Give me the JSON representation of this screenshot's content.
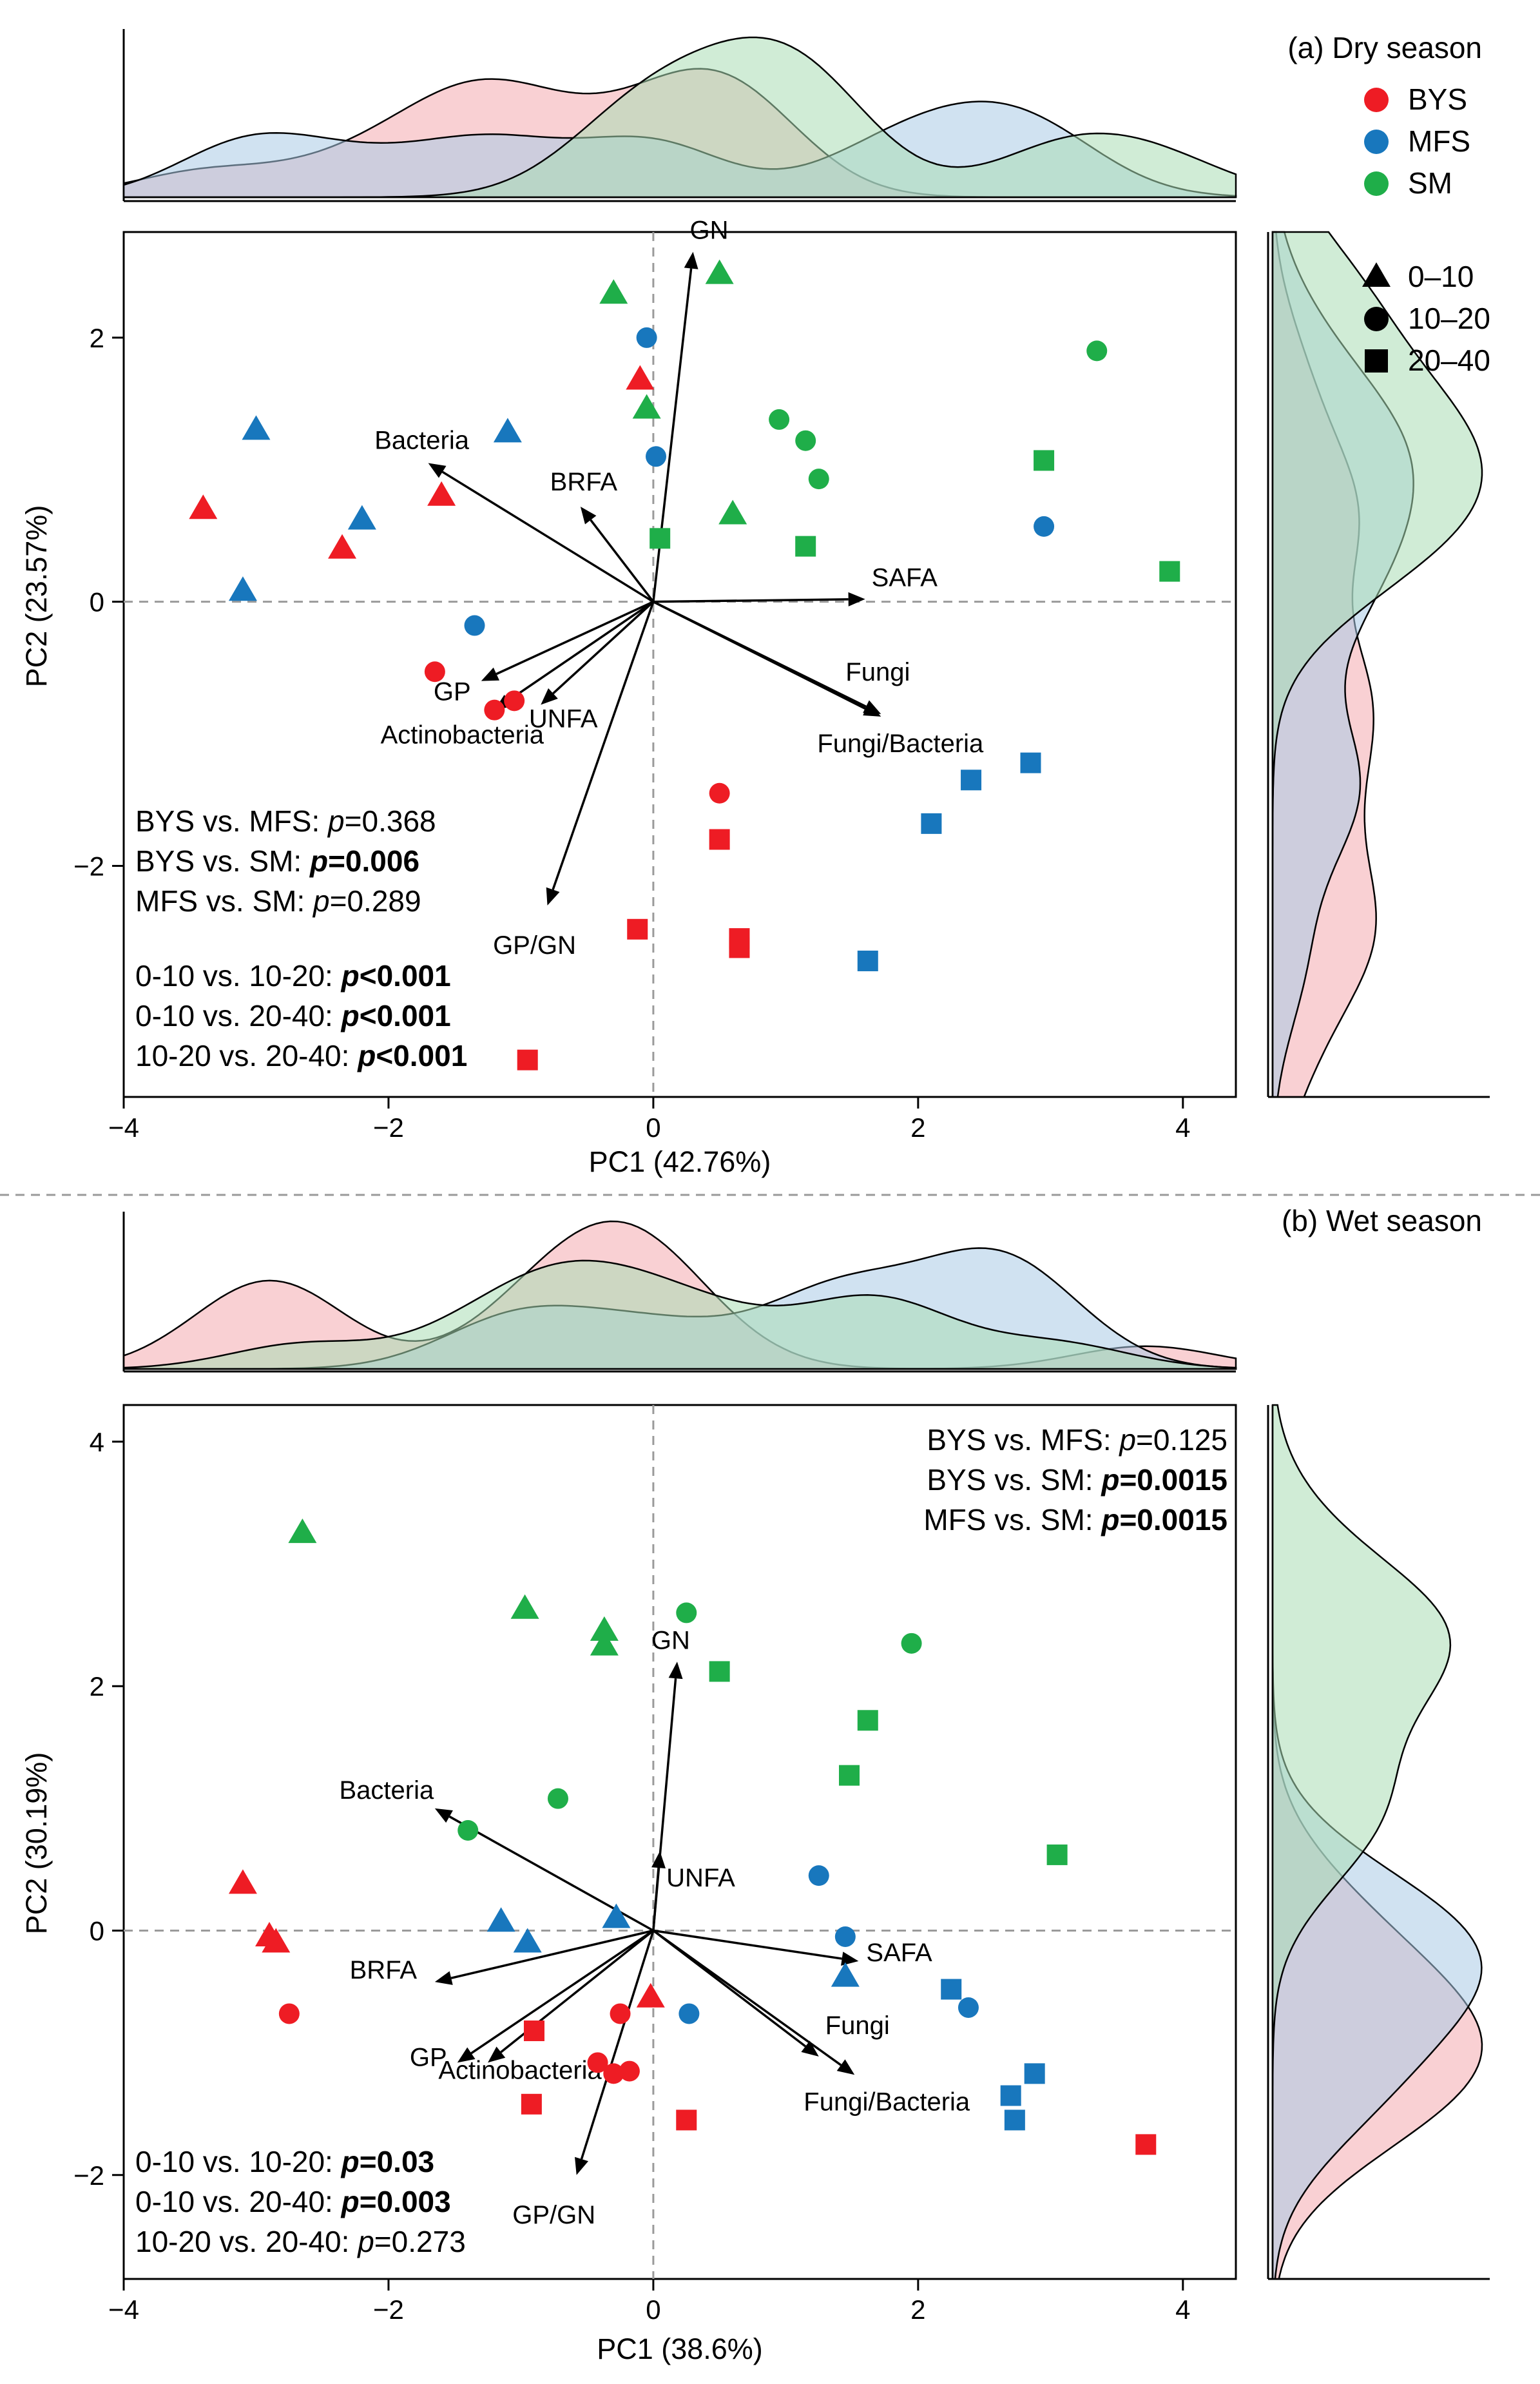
{
  "figure": {
    "legend": {
      "groups": [
        {
          "name": "BYS",
          "color": "#ee1c24"
        },
        {
          "name": "MFS",
          "color": "#1877bd"
        },
        {
          "name": "SM",
          "color": "#1fae49"
        }
      ],
      "depths": [
        {
          "name": "0–10",
          "shape": "triangle"
        },
        {
          "name": "10–20",
          "shape": "circle"
        },
        {
          "name": "20–40",
          "shape": "square"
        }
      ]
    },
    "colors": {
      "BYS": "#ee1c24",
      "MFS": "#1877bd",
      "SM": "#1fae49",
      "BYS_fill": "#f4a9ae",
      "MFS_fill": "#a9cbe6",
      "SM_fill": "#a9dcb4",
      "axis": "#000000",
      "zero_line": "#9a9a9a",
      "divider": "#9a9a9a"
    }
  },
  "chart_data": [
    {
      "id": "a",
      "type": "scatter",
      "title": "(a) Dry season",
      "xlabel": "PC1 (42.76%)",
      "ylabel": "PC2 (23.57%)",
      "xlim": [
        -4.0,
        4.4
      ],
      "ylim": [
        -3.75,
        2.8
      ],
      "xticks": [
        -4,
        -2,
        0,
        2,
        4
      ],
      "yticks": [
        -2,
        0,
        2
      ],
      "xtick_labels": [
        "−4",
        "−2",
        "0",
        "2",
        "4"
      ],
      "ytick_labels": [
        "−2",
        "0",
        "2"
      ],
      "points": [
        {
          "g": "BYS",
          "d": "0-10",
          "x": -3.4,
          "y": 0.7
        },
        {
          "g": "BYS",
          "d": "0-10",
          "x": -2.35,
          "y": 0.4
        },
        {
          "g": "BYS",
          "d": "0-10",
          "x": -1.6,
          "y": 0.8
        },
        {
          "g": "BYS",
          "d": "0-10",
          "x": -0.1,
          "y": 1.68
        },
        {
          "g": "BYS",
          "d": "10-20",
          "x": -1.65,
          "y": -0.53
        },
        {
          "g": "BYS",
          "d": "10-20",
          "x": -1.2,
          "y": -0.82
        },
        {
          "g": "BYS",
          "d": "10-20",
          "x": -1.05,
          "y": -0.75
        },
        {
          "g": "BYS",
          "d": "10-20",
          "x": 0.5,
          "y": -1.45
        },
        {
          "g": "BYS",
          "d": "20-40",
          "x": 0.5,
          "y": -1.8
        },
        {
          "g": "BYS",
          "d": "20-40",
          "x": -0.12,
          "y": -2.48
        },
        {
          "g": "BYS",
          "d": "20-40",
          "x": 0.65,
          "y": -2.55
        },
        {
          "g": "BYS",
          "d": "20-40",
          "x": 0.65,
          "y": -2.62
        },
        {
          "g": "BYS",
          "d": "20-40",
          "x": -0.95,
          "y": -3.47
        },
        {
          "g": "MFS",
          "d": "0-10",
          "x": -3.0,
          "y": 1.3
        },
        {
          "g": "MFS",
          "d": "0-10",
          "x": -2.2,
          "y": 0.62
        },
        {
          "g": "MFS",
          "d": "0-10",
          "x": -3.1,
          "y": 0.08
        },
        {
          "g": "MFS",
          "d": "0-10",
          "x": -1.1,
          "y": 1.28
        },
        {
          "g": "MFS",
          "d": "10-20",
          "x": -0.05,
          "y": 2.0
        },
        {
          "g": "MFS",
          "d": "10-20",
          "x": 0.02,
          "y": 1.1
        },
        {
          "g": "MFS",
          "d": "10-20",
          "x": -1.35,
          "y": -0.18
        },
        {
          "g": "MFS",
          "d": "10-20",
          "x": 2.95,
          "y": 0.57
        },
        {
          "g": "MFS",
          "d": "20-40",
          "x": 2.85,
          "y": -1.22
        },
        {
          "g": "MFS",
          "d": "20-40",
          "x": 2.4,
          "y": -1.35
        },
        {
          "g": "MFS",
          "d": "20-40",
          "x": 2.1,
          "y": -1.68
        },
        {
          "g": "MFS",
          "d": "20-40",
          "x": 1.62,
          "y": -2.72
        },
        {
          "g": "SM",
          "d": "0-10",
          "x": -0.3,
          "y": 2.33
        },
        {
          "g": "SM",
          "d": "0-10",
          "x": 0.5,
          "y": 2.48
        },
        {
          "g": "SM",
          "d": "0-10",
          "x": -0.05,
          "y": 1.46
        },
        {
          "g": "SM",
          "d": "0-10",
          "x": 0.6,
          "y": 0.66
        },
        {
          "g": "SM",
          "d": "10-20",
          "x": 0.95,
          "y": 1.38
        },
        {
          "g": "SM",
          "d": "10-20",
          "x": 1.15,
          "y": 1.22
        },
        {
          "g": "SM",
          "d": "10-20",
          "x": 1.25,
          "y": 0.93
        },
        {
          "g": "SM",
          "d": "10-20",
          "x": 3.35,
          "y": 1.9
        },
        {
          "g": "SM",
          "d": "20-40",
          "x": 0.05,
          "y": 0.48
        },
        {
          "g": "SM",
          "d": "20-40",
          "x": 1.15,
          "y": 0.42
        },
        {
          "g": "SM",
          "d": "20-40",
          "x": 2.95,
          "y": 1.07
        },
        {
          "g": "SM",
          "d": "20-40",
          "x": 3.9,
          "y": 0.23
        }
      ],
      "vectors": [
        {
          "label": "GN",
          "x": 0.3,
          "y": 2.65
        },
        {
          "label": "Bacteria",
          "x": -1.7,
          "y": 1.05
        },
        {
          "label": "BRFA",
          "x": -0.55,
          "y": 0.72
        },
        {
          "label": "SAFA",
          "x": 1.6,
          "y": 0.02
        },
        {
          "label": "Fungi",
          "x": 1.72,
          "y": -0.85
        },
        {
          "label": "Fungi/Bacteria",
          "x": 1.72,
          "y": -0.87
        },
        {
          "label": "GP",
          "x": -1.3,
          "y": -0.6
        },
        {
          "label": "Actinobacteria",
          "x": -1.2,
          "y": -0.82
        },
        {
          "label": "UNFA",
          "x": -0.85,
          "y": -0.78
        },
        {
          "label": "GP/GN",
          "x": -0.8,
          "y": -2.3
        }
      ],
      "stats": [
        {
          "pre": "BYS vs. MFS: ",
          "p": "p",
          "val": "=0.368",
          "bold": false
        },
        {
          "pre": "BYS vs. SM: ",
          "p": "p",
          "val": "=0.006",
          "bold": true
        },
        {
          "pre": "MFS vs. SM: ",
          "p": "p",
          "val": "=0.289",
          "bold": false
        },
        {
          "pre": "0-10 vs. 10-20: ",
          "p": "p",
          "val": "<0.001",
          "bold": true
        },
        {
          "pre": "0-10 vs. 20-40: ",
          "p": "p",
          "val": "<0.001",
          "bold": true
        },
        {
          "pre": "10-20 vs. 20-40: ",
          "p": "p",
          "val": "<0.001",
          "bold": true
        }
      ]
    },
    {
      "id": "b",
      "type": "scatter",
      "title": "(b) Wet season",
      "xlabel": "PC1 (38.6%)",
      "ylabel": "PC2 (30.19%)",
      "xlim": [
        -4.0,
        4.4
      ],
      "ylim": [
        -2.85,
        4.3
      ],
      "xticks": [
        -4,
        -2,
        0,
        2,
        4
      ],
      "yticks": [
        -2,
        0,
        2,
        4
      ],
      "xtick_labels": [
        "−4",
        "−2",
        "0",
        "2",
        "4"
      ],
      "ytick_labels": [
        "−2",
        "0",
        "2",
        "4"
      ],
      "points": [
        {
          "g": "BYS",
          "d": "0-10",
          "x": -3.1,
          "y": 0.38
        },
        {
          "g": "BYS",
          "d": "0-10",
          "x": -2.9,
          "y": -0.05
        },
        {
          "g": "BYS",
          "d": "0-10",
          "x": -2.85,
          "y": -0.1
        },
        {
          "g": "BYS",
          "d": "0-10",
          "x": -0.02,
          "y": -0.55
        },
        {
          "g": "BYS",
          "d": "10-20",
          "x": -2.75,
          "y": -0.68
        },
        {
          "g": "BYS",
          "d": "10-20",
          "x": -0.25,
          "y": -0.68
        },
        {
          "g": "BYS",
          "d": "10-20",
          "x": -0.42,
          "y": -1.08
        },
        {
          "g": "BYS",
          "d": "10-20",
          "x": -0.3,
          "y": -1.17
        },
        {
          "g": "BYS",
          "d": "10-20",
          "x": -0.18,
          "y": -1.15
        },
        {
          "g": "BYS",
          "d": "20-40",
          "x": -0.9,
          "y": -0.82
        },
        {
          "g": "BYS",
          "d": "20-40",
          "x": -0.92,
          "y": -1.42
        },
        {
          "g": "BYS",
          "d": "20-40",
          "x": 0.25,
          "y": -1.55
        },
        {
          "g": "BYS",
          "d": "20-40",
          "x": 3.72,
          "y": -1.75
        },
        {
          "g": "MFS",
          "d": "0-10",
          "x": -1.15,
          "y": 0.07
        },
        {
          "g": "MFS",
          "d": "0-10",
          "x": -0.95,
          "y": -0.1
        },
        {
          "g": "MFS",
          "d": "0-10",
          "x": -0.28,
          "y": 0.1
        },
        {
          "g": "MFS",
          "d": "0-10",
          "x": 1.45,
          "y": -0.38
        },
        {
          "g": "MFS",
          "d": "10-20",
          "x": 1.25,
          "y": 0.45
        },
        {
          "g": "MFS",
          "d": "10-20",
          "x": 1.45,
          "y": -0.05
        },
        {
          "g": "MFS",
          "d": "10-20",
          "x": 0.27,
          "y": -0.68
        },
        {
          "g": "MFS",
          "d": "10-20",
          "x": 2.38,
          "y": -0.63
        },
        {
          "g": "MFS",
          "d": "20-40",
          "x": 2.25,
          "y": -0.48
        },
        {
          "g": "MFS",
          "d": "20-40",
          "x": 2.88,
          "y": -1.17
        },
        {
          "g": "MFS",
          "d": "20-40",
          "x": 2.7,
          "y": -1.35
        },
        {
          "g": "MFS",
          "d": "20-40",
          "x": 2.73,
          "y": -1.55
        },
        {
          "g": "SM",
          "d": "0-10",
          "x": -2.65,
          "y": 3.25
        },
        {
          "g": "SM",
          "d": "0-10",
          "x": -0.97,
          "y": 2.63
        },
        {
          "g": "SM",
          "d": "0-10",
          "x": -0.37,
          "y": 2.45
        },
        {
          "g": "SM",
          "d": "0-10",
          "x": -0.37,
          "y": 2.33
        },
        {
          "g": "SM",
          "d": "10-20",
          "x": 0.25,
          "y": 2.6
        },
        {
          "g": "SM",
          "d": "10-20",
          "x": 1.95,
          "y": 2.35
        },
        {
          "g": "SM",
          "d": "10-20",
          "x": -0.72,
          "y": 1.08
        },
        {
          "g": "SM",
          "d": "10-20",
          "x": -1.4,
          "y": 0.82
        },
        {
          "g": "SM",
          "d": "20-40",
          "x": 0.5,
          "y": 2.12
        },
        {
          "g": "SM",
          "d": "20-40",
          "x": 1.62,
          "y": 1.72
        },
        {
          "g": "SM",
          "d": "20-40",
          "x": 1.48,
          "y": 1.27
        },
        {
          "g": "SM",
          "d": "20-40",
          "x": 3.05,
          "y": 0.62
        }
      ],
      "vectors": [
        {
          "label": "GN",
          "x": 0.18,
          "y": 2.2
        },
        {
          "label": "UNFA",
          "x": 0.05,
          "y": 0.65
        },
        {
          "label": "Bacteria",
          "x": -1.65,
          "y": 1.0
        },
        {
          "label": "SAFA",
          "x": 1.55,
          "y": -0.25
        },
        {
          "label": "BRFA",
          "x": -1.65,
          "y": -0.42
        },
        {
          "label": "Fungi",
          "x": 1.25,
          "y": -1.03
        },
        {
          "label": "Fungi/Bacteria",
          "x": 1.52,
          "y": -1.18
        },
        {
          "label": "GP",
          "x": -1.48,
          "y": -1.08
        },
        {
          "label": "Actinobacteria",
          "x": -1.25,
          "y": -1.08
        },
        {
          "label": "GP/GN",
          "x": -0.58,
          "y": -2.0
        }
      ],
      "stats": [
        {
          "pre": "BYS vs. MFS: ",
          "p": "p",
          "val": "=0.125",
          "bold": false
        },
        {
          "pre": "BYS vs. SM: ",
          "p": "p",
          "val": "=0.0015",
          "bold": true
        },
        {
          "pre": "MFS vs. SM: ",
          "p": "p",
          "val": "=0.0015",
          "bold": true
        },
        {
          "pre": "0-10 vs. 10-20: ",
          "p": "p",
          "val": "=0.03",
          "bold": true
        },
        {
          "pre": "0-10 vs. 20-40: ",
          "p": "p",
          "val": "=0.003",
          "bold": true
        },
        {
          "pre": "10-20 vs. 20-40: ",
          "p": "p",
          "val": "=0.273",
          "bold": false
        }
      ]
    }
  ]
}
